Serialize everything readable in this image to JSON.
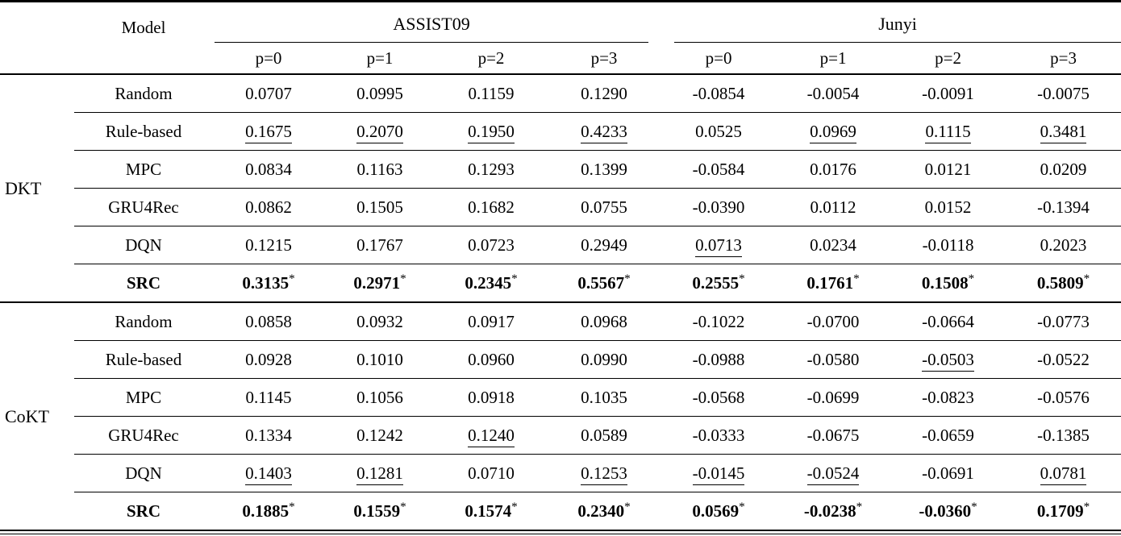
{
  "table": {
    "header": {
      "model_label": "Model",
      "groups": [
        {
          "label": "ASSIST09",
          "subcols": [
            "p=0",
            "p=1",
            "p=2",
            "p=3"
          ]
        },
        {
          "label": "Junyi",
          "subcols": [
            "p=0",
            "p=1",
            "p=2",
            "p=3"
          ]
        }
      ]
    },
    "sections": [
      {
        "group": "DKT",
        "rows": [
          {
            "model": "Random",
            "cells": [
              {
                "text": "0.0707"
              },
              {
                "text": "0.0995"
              },
              {
                "text": "0.1159"
              },
              {
                "text": "0.1290"
              },
              {
                "text": "-0.0854"
              },
              {
                "text": "-0.0054"
              },
              {
                "text": "-0.0091"
              },
              {
                "text": "-0.0075"
              }
            ]
          },
          {
            "model": "Rule-based",
            "cells": [
              {
                "text": "0.1675",
                "underline": true
              },
              {
                "text": "0.2070",
                "underline": true
              },
              {
                "text": "0.1950",
                "underline": true
              },
              {
                "text": "0.4233",
                "underline": true
              },
              {
                "text": "0.0525"
              },
              {
                "text": "0.0969",
                "underline": true
              },
              {
                "text": "0.1115",
                "underline": true
              },
              {
                "text": "0.3481",
                "underline": true
              }
            ]
          },
          {
            "model": "MPC",
            "cells": [
              {
                "text": "0.0834"
              },
              {
                "text": "0.1163"
              },
              {
                "text": "0.1293"
              },
              {
                "text": "0.1399"
              },
              {
                "text": "-0.0584"
              },
              {
                "text": "0.0176"
              },
              {
                "text": "0.0121"
              },
              {
                "text": "0.0209"
              }
            ]
          },
          {
            "model": "GRU4Rec",
            "cells": [
              {
                "text": "0.0862"
              },
              {
                "text": "0.1505"
              },
              {
                "text": "0.1682"
              },
              {
                "text": "0.0755"
              },
              {
                "text": "-0.0390"
              },
              {
                "text": "0.0112"
              },
              {
                "text": "0.0152"
              },
              {
                "text": "-0.1394"
              }
            ]
          },
          {
            "model": "DQN",
            "cells": [
              {
                "text": "0.1215"
              },
              {
                "text": "0.1767"
              },
              {
                "text": "0.0723"
              },
              {
                "text": "0.2949"
              },
              {
                "text": "0.0713",
                "underline": true
              },
              {
                "text": "0.0234"
              },
              {
                "text": "-0.0118"
              },
              {
                "text": "0.2023"
              }
            ]
          },
          {
            "model": "SRC",
            "model_bold": true,
            "cells": [
              {
                "text": "0.3135",
                "bold": true,
                "star": true
              },
              {
                "text": "0.2971",
                "bold": true,
                "star": true
              },
              {
                "text": "0.2345",
                "bold": true,
                "star": true
              },
              {
                "text": "0.5567",
                "bold": true,
                "star": true
              },
              {
                "text": "0.2555",
                "bold": true,
                "star": true
              },
              {
                "text": "0.1761",
                "bold": true,
                "star": true
              },
              {
                "text": "0.1508",
                "bold": true,
                "star": true
              },
              {
                "text": "0.5809",
                "bold": true,
                "star": true
              }
            ]
          }
        ]
      },
      {
        "group": "CoKT",
        "rows": [
          {
            "model": "Random",
            "cells": [
              {
                "text": "0.0858"
              },
              {
                "text": "0.0932"
              },
              {
                "text": "0.0917"
              },
              {
                "text": "0.0968"
              },
              {
                "text": "-0.1022"
              },
              {
                "text": "-0.0700"
              },
              {
                "text": "-0.0664"
              },
              {
                "text": "-0.0773"
              }
            ]
          },
          {
            "model": "Rule-based",
            "cells": [
              {
                "text": "0.0928"
              },
              {
                "text": "0.1010"
              },
              {
                "text": "0.0960"
              },
              {
                "text": "0.0990"
              },
              {
                "text": "-0.0988"
              },
              {
                "text": "-0.0580"
              },
              {
                "text": "-0.0503",
                "underline": true
              },
              {
                "text": "-0.0522"
              }
            ]
          },
          {
            "model": "MPC",
            "cells": [
              {
                "text": "0.1145"
              },
              {
                "text": "0.1056"
              },
              {
                "text": "0.0918"
              },
              {
                "text": "0.1035"
              },
              {
                "text": "-0.0568"
              },
              {
                "text": "-0.0699"
              },
              {
                "text": "-0.0823"
              },
              {
                "text": "-0.0576"
              }
            ]
          },
          {
            "model": "GRU4Rec",
            "cells": [
              {
                "text": "0.1334"
              },
              {
                "text": "0.1242"
              },
              {
                "text": "0.1240",
                "underline": true
              },
              {
                "text": "0.0589"
              },
              {
                "text": "-0.0333"
              },
              {
                "text": "-0.0675"
              },
              {
                "text": "-0.0659"
              },
              {
                "text": "-0.1385"
              }
            ]
          },
          {
            "model": "DQN",
            "cells": [
              {
                "text": "0.1403",
                "underline": true
              },
              {
                "text": "0.1281",
                "underline": true
              },
              {
                "text": "0.0710"
              },
              {
                "text": "0.1253",
                "underline": true
              },
              {
                "text": "-0.0145",
                "underline": true
              },
              {
                "text": "-0.0524",
                "underline": true
              },
              {
                "text": "-0.0691"
              },
              {
                "text": "0.0781",
                "underline": true
              }
            ]
          },
          {
            "model": "SRC",
            "model_bold": true,
            "cells": [
              {
                "text": "0.1885",
                "bold": true,
                "star": true
              },
              {
                "text": "0.1559",
                "bold": true,
                "star": true
              },
              {
                "text": "0.1574",
                "bold": true,
                "star": true
              },
              {
                "text": "0.2340",
                "bold": true,
                "star": true
              },
              {
                "text": "0.0569",
                "bold": true,
                "star": true
              },
              {
                "text": "-0.0238",
                "bold": true,
                "star": true
              },
              {
                "text": "-0.0360",
                "bold": true,
                "star": true
              },
              {
                "text": "0.1709",
                "bold": true,
                "star": true
              }
            ]
          }
        ]
      }
    ]
  }
}
